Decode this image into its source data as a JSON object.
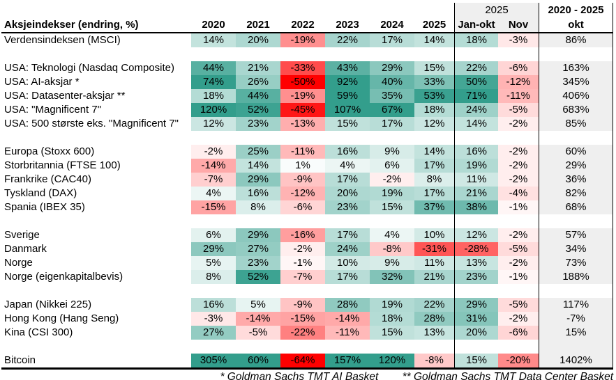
{
  "table": {
    "title": "Aksjeindekser (endring, %)",
    "year_headers": [
      "2020",
      "2021",
      "2022",
      "2023",
      "2024",
      "2025"
    ],
    "group_label": "2025",
    "sub_headers": [
      "Jan-okt",
      "Nov"
    ],
    "total_header_line1": "2020 - 2025",
    "total_header_line2": "okt",
    "footnotes": [
      "* Goldman Sachs TMT AI Basket",
      "** Goldman Sachs TMT Data Center Basket"
    ]
  },
  "colors": {
    "positive_max": "#339E8C",
    "negative_max": "#FF0000",
    "neutral": "#FFFFFF",
    "header_fill": "#EFEFEF",
    "total_fill": "#EFEFEF",
    "border": "#000000"
  },
  "chart_data": {
    "type": "heatmap",
    "title": "Aksjeindekser (endring, %)",
    "unit": "%",
    "columns": [
      "2020",
      "2021",
      "2022",
      "2023",
      "2024",
      "2025",
      "2025 Jan-okt",
      "2025 Nov",
      "2020 - 2025 okt"
    ],
    "color_scale": {
      "min_color": "#FF0000",
      "mid_color": "#FFFFFF",
      "max_color": "#339E8C",
      "midpoint": 0
    },
    "rows": [
      {
        "label": "Verdensindeksen (MSCI)",
        "values": [
          14,
          20,
          -19,
          22,
          17,
          14,
          18,
          -3,
          86
        ]
      },
      {
        "spacer": true
      },
      {
        "label": "USA: Teknologi (Nasdaq Composite)",
        "values": [
          44,
          21,
          -33,
          43,
          29,
          15,
          22,
          -6,
          163
        ]
      },
      {
        "label": "USA: AI-aksjar *",
        "values": [
          74,
          26,
          -50,
          92,
          40,
          33,
          50,
          -12,
          345
        ]
      },
      {
        "label": "USA: Datasenter-aksjar **",
        "values": [
          18,
          44,
          -19,
          59,
          35,
          53,
          71,
          -11,
          406
        ]
      },
      {
        "label": "USA: \"Magnificent 7\"",
        "values": [
          120,
          52,
          -45,
          107,
          67,
          18,
          24,
          -5,
          683
        ]
      },
      {
        "label": "USA: 500 største eks. \"Magnificent 7\"",
        "values": [
          12,
          23,
          -13,
          15,
          17,
          12,
          14,
          -2,
          85
        ]
      },
      {
        "spacer": true
      },
      {
        "label": "Europa (Stoxx 600)",
        "values": [
          -2,
          25,
          -11,
          16,
          9,
          14,
          16,
          -2,
          60
        ]
      },
      {
        "label": "Storbritannia (FTSE 100)",
        "values": [
          -14,
          14,
          1,
          4,
          6,
          17,
          19,
          -2,
          29
        ]
      },
      {
        "label": "Frankrike (CAC40)",
        "values": [
          -7,
          29,
          -9,
          17,
          -2,
          8,
          11,
          -2,
          36
        ]
      },
      {
        "label": "Tyskland (DAX)",
        "values": [
          4,
          16,
          -12,
          20,
          19,
          17,
          21,
          -4,
          82
        ]
      },
      {
        "label": "Spania (IBEX 35)",
        "values": [
          -15,
          8,
          -6,
          23,
          15,
          37,
          38,
          -1,
          68
        ]
      },
      {
        "spacer": true
      },
      {
        "label": "Sverige",
        "values": [
          6,
          29,
          -16,
          17,
          4,
          10,
          12,
          -2,
          57
        ]
      },
      {
        "label": "Danmark",
        "values": [
          29,
          27,
          -2,
          24,
          -8,
          -31,
          -28,
          -5,
          34
        ]
      },
      {
        "label": "Norge",
        "values": [
          5,
          23,
          -1,
          10,
          9,
          11,
          13,
          -2,
          73
        ]
      },
      {
        "label": "Norge (eigenkapitalbevis)",
        "values": [
          8,
          52,
          -7,
          17,
          32,
          21,
          23,
          -1,
          188
        ]
      },
      {
        "spacer": true
      },
      {
        "label": "Japan (Nikkei 225)",
        "values": [
          16,
          5,
          -9,
          28,
          19,
          22,
          29,
          -5,
          117
        ]
      },
      {
        "label": "Hong Kong (Hang Seng)",
        "values": [
          -3,
          -14,
          -15,
          -14,
          18,
          28,
          31,
          -2,
          -7
        ]
      },
      {
        "label": "Kina (CSI 300)",
        "values": [
          27,
          -5,
          -22,
          -11,
          15,
          13,
          20,
          -6,
          15
        ]
      },
      {
        "spacer": true,
        "last_col_gray": true
      },
      {
        "label": "Bitcoin",
        "values": [
          305,
          60,
          -64,
          157,
          120,
          -8,
          15,
          -20,
          1402
        ]
      }
    ]
  }
}
